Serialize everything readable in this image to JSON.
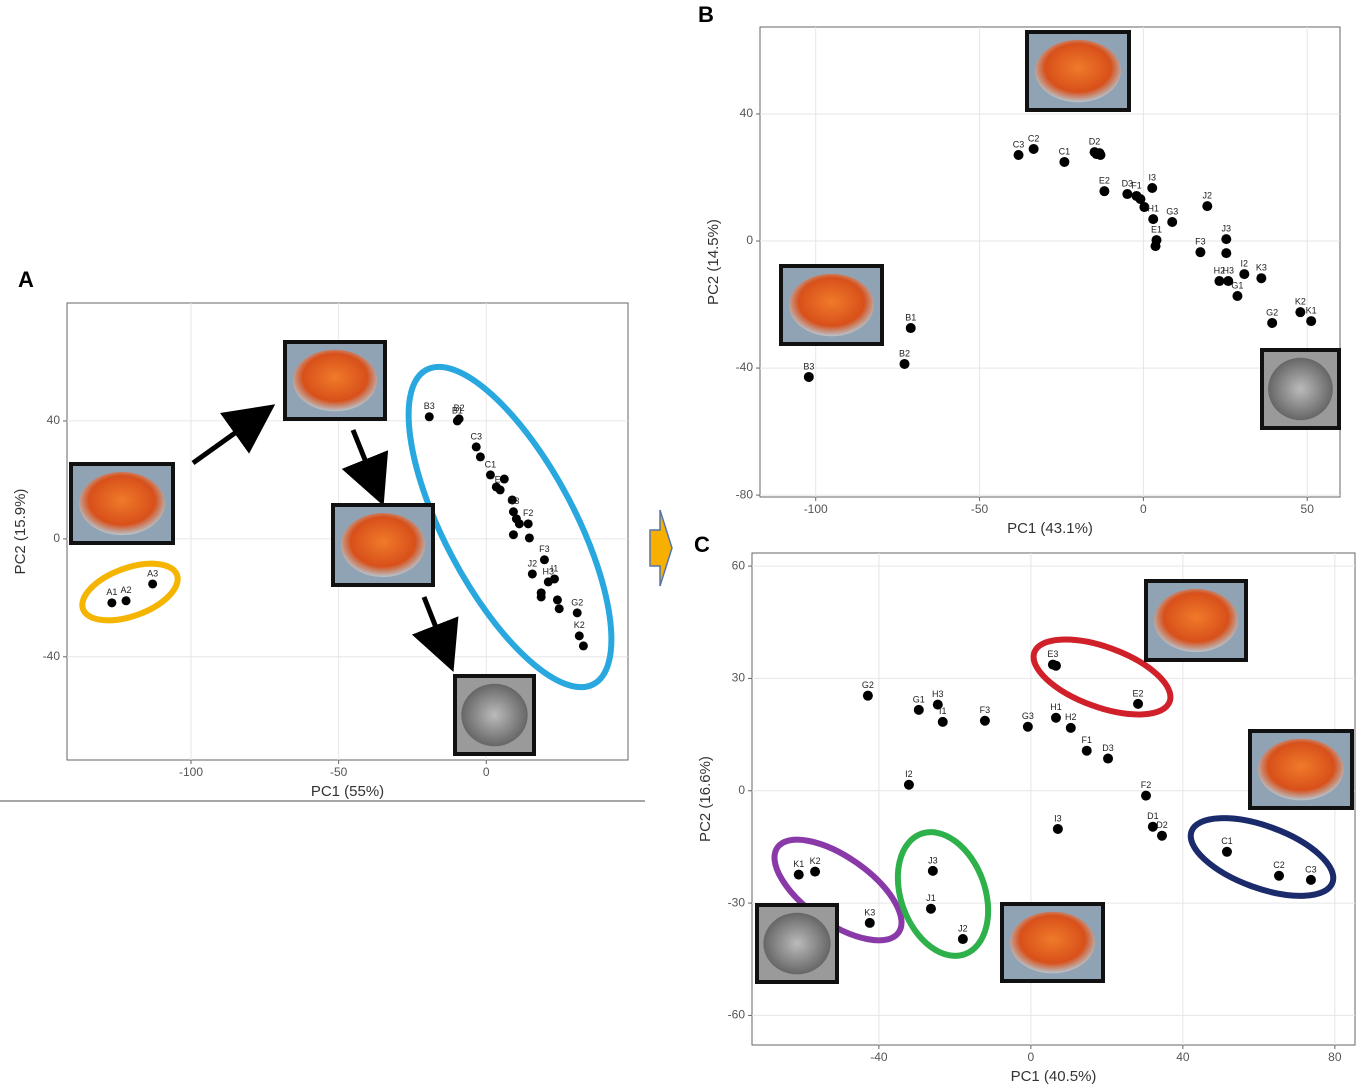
{
  "panel_labels": [
    "A",
    "B",
    "C"
  ],
  "chart_data": [
    {
      "type": "scatter",
      "xlabel": "PC1 (55%)",
      "ylabel": "PC2 (15.9%)",
      "color": "#000000",
      "grid": true,
      "xlim": [
        -142,
        48
      ],
      "ylim": [
        -75,
        80
      ],
      "xticks": [
        -100,
        -50,
        0
      ],
      "yticks": [
        -40,
        0,
        40
      ],
      "x": [
        -126.8,
        -122,
        -113,
        -19.3,
        -9.2,
        -9.8,
        -3.4,
        -2.0,
        1.4,
        3.4,
        4.7,
        6.1,
        8.8,
        9.2,
        10.2,
        11.2,
        9.2,
        14.2,
        14.6,
        19.7,
        15.6,
        21.0,
        23.1,
        18.6,
        18.6,
        24.1,
        24.7,
        30.8,
        31.5,
        32.9
      ],
      "values": [
        -21.7,
        -21,
        -15.3,
        41.4,
        40.7,
        40.0,
        31.2,
        27.8,
        21.7,
        17.6,
        16.6,
        20.3,
        13.2,
        9.2,
        6.8,
        5.1,
        1.4,
        5.1,
        0.3,
        -7.1,
        -11.9,
        -14.6,
        -13.6,
        -18.3,
        -19.7,
        -20.7,
        -23.7,
        -25.1,
        -32.9,
        -36.3
      ],
      "labels": [
        "A1",
        "A2",
        "A3",
        "B3",
        "B2",
        "B1",
        "C3",
        null,
        "C1",
        null,
        "E2",
        null,
        null,
        "G3",
        null,
        null,
        null,
        "F2",
        null,
        "F3",
        "J2",
        "H3",
        "I1",
        null,
        null,
        null,
        null,
        "G2",
        "K2",
        null
      ]
    },
    {
      "type": "scatter",
      "xlabel": "PC1 (43.1%)",
      "ylabel": "PC2 (14.5%)",
      "color": "#000000",
      "grid": true,
      "xlim": [
        -117,
        60
      ],
      "ylim": [
        -80.6,
        67.4
      ],
      "xticks": [
        -100,
        -50,
        0,
        50
      ],
      "yticks": [
        -80,
        -40,
        0,
        40
      ],
      "x": [
        -38.1,
        -33.5,
        -24.1,
        -14.9,
        -14.3,
        -13.4,
        -13.1,
        -11.9,
        -4.9,
        -2.1,
        -0.9,
        2.7,
        0.3,
        3.0,
        8.8,
        19.5,
        4.0,
        3.7,
        25.3,
        25.3,
        17.4,
        30.8,
        36.0,
        23.2,
        25.9,
        28.7,
        39.3,
        47.9,
        51.2,
        -71.0,
        -72.9,
        -102.1
      ],
      "values": [
        27.1,
        29.0,
        24.9,
        28.0,
        27.4,
        27.7,
        27.1,
        15.7,
        14.8,
        14.2,
        13.2,
        16.7,
        10.7,
        6.9,
        6.0,
        11.0,
        0.3,
        -1.6,
        0.6,
        -3.8,
        -3.5,
        -10.4,
        -11.7,
        -12.6,
        -12.6,
        -17.3,
        -25.8,
        -22.4,
        -25.2,
        -27.4,
        -38.7,
        -42.8
      ],
      "labels": [
        "C3",
        "C2",
        "C1",
        "D2",
        null,
        null,
        null,
        "E2",
        "D3",
        "F1",
        null,
        "I3",
        null,
        "H1",
        "G3",
        "J2",
        "E1",
        null,
        "J3",
        null,
        "F3",
        "I2",
        "K3",
        "H2",
        "H3",
        "G1",
        "G2",
        "K2",
        "K1",
        "B1",
        "B2",
        "B3"
      ]
    },
    {
      "type": "scatter",
      "xlabel": "PC1 (40.5%)",
      "ylabel": "PC2 (16.6%)",
      "color": "#000000",
      "grid": true,
      "xlim": [
        -73.4,
        85.3
      ],
      "ylim": [
        -67.9,
        63.5
      ],
      "xticks": [
        -40,
        0,
        40,
        80
      ],
      "yticks": [
        -60,
        -30,
        0,
        30,
        60
      ],
      "x": [
        -42.9,
        -29.5,
        -24.5,
        -23.2,
        -12.1,
        -0.8,
        6.6,
        10.5,
        14.7,
        20.3,
        5.8,
        6.6,
        28.2,
        -32.1,
        30.3,
        7.1,
        32.1,
        34.5,
        51.6,
        65.3,
        73.7,
        -61.1,
        -56.8,
        -42.4,
        -25.8,
        -26.3,
        -17.9
      ],
      "values": [
        25.4,
        21.6,
        23.0,
        18.4,
        18.7,
        17.1,
        19.5,
        16.8,
        10.7,
        8.6,
        33.7,
        33.4,
        23.2,
        1.6,
        -1.3,
        -10.2,
        -9.6,
        -12.0,
        -16.3,
        -22.7,
        -23.8,
        -22.4,
        -21.6,
        -35.3,
        -21.4,
        -31.5,
        -39.6
      ],
      "labels": [
        "G2",
        "G1",
        "H3",
        "I1",
        "F3",
        "G3",
        "H1",
        "H2",
        "F1",
        "D3",
        "E3",
        null,
        "E2",
        "I2",
        "F2",
        "I3",
        "D1",
        "D2",
        "C1",
        "C2",
        "C3",
        "K1",
        "K2",
        "K3",
        "J3",
        "J1",
        "J2"
      ]
    }
  ]
}
